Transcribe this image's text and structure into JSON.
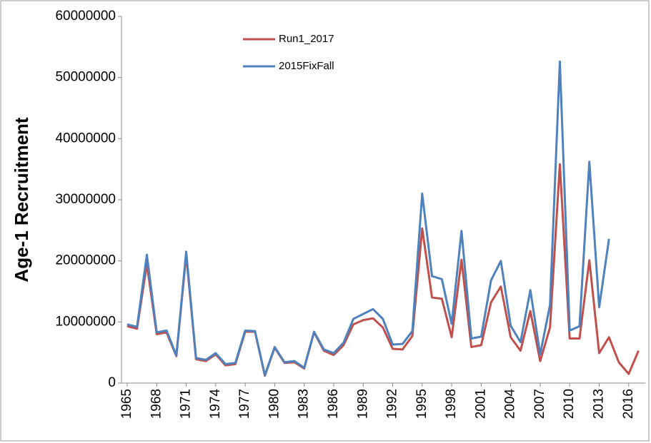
{
  "chart_data": {
    "type": "line",
    "y_label": "Age-1 Recruitment",
    "categories": [
      "1965",
      null,
      null,
      "1968",
      null,
      null,
      "1971",
      null,
      null,
      "1974",
      null,
      null,
      "1977",
      null,
      null,
      "1980",
      null,
      null,
      "1983",
      null,
      null,
      "1986",
      null,
      null,
      "1989",
      null,
      null,
      "1992",
      null,
      null,
      "1995",
      null,
      null,
      "1998",
      null,
      null,
      "2001",
      null,
      null,
      "2004",
      null,
      null,
      "2007",
      null,
      null,
      "2010",
      null,
      null,
      "2013",
      null,
      null,
      "2016",
      null
    ],
    "series": [
      {
        "name": "Run1_2017",
        "color": "#c0504d",
        "values": [
          9300000,
          8900000,
          19500000,
          8000000,
          8300000,
          4400000,
          21000000,
          3900000,
          3600000,
          4700000,
          2900000,
          3100000,
          8400000,
          8400000,
          1200000,
          5800000,
          3300000,
          3400000,
          2400000,
          8300000,
          5300000,
          4600000,
          6200000,
          9600000,
          10300000,
          10600000,
          9100000,
          5600000,
          5500000,
          7700000,
          25300000,
          14000000,
          13800000,
          7500000,
          20200000,
          5900000,
          6200000,
          13200000,
          15800000,
          7500000,
          5300000,
          11800000,
          3600000,
          9100000,
          35800000,
          7300000,
          7300000,
          20100000,
          4900000,
          7500000,
          3400000,
          1500000,
          5300000
        ]
      },
      {
        "name": "2015FixFall",
        "color": "#4f81bd",
        "values": [
          9600000,
          9200000,
          21000000,
          8300000,
          8600000,
          4500000,
          21500000,
          4100000,
          3800000,
          4900000,
          3100000,
          3300000,
          8600000,
          8500000,
          1300000,
          5900000,
          3400000,
          3600000,
          2500000,
          8400000,
          5500000,
          4900000,
          6600000,
          10500000,
          11300000,
          12100000,
          10500000,
          6300000,
          6400000,
          8500000,
          31000000,
          17500000,
          17000000,
          9700000,
          24900000,
          7300000,
          7600000,
          16800000,
          20000000,
          9400000,
          6700000,
          15200000,
          4700000,
          12800000,
          52600000,
          8600000,
          9300000,
          36200000,
          12400000,
          23600000,
          null,
          null,
          null
        ]
      }
    ],
    "ylim": [
      0,
      60000000
    ],
    "yticks": [
      0,
      10000000,
      20000000,
      30000000,
      40000000,
      50000000,
      60000000
    ],
    "grid": false
  }
}
